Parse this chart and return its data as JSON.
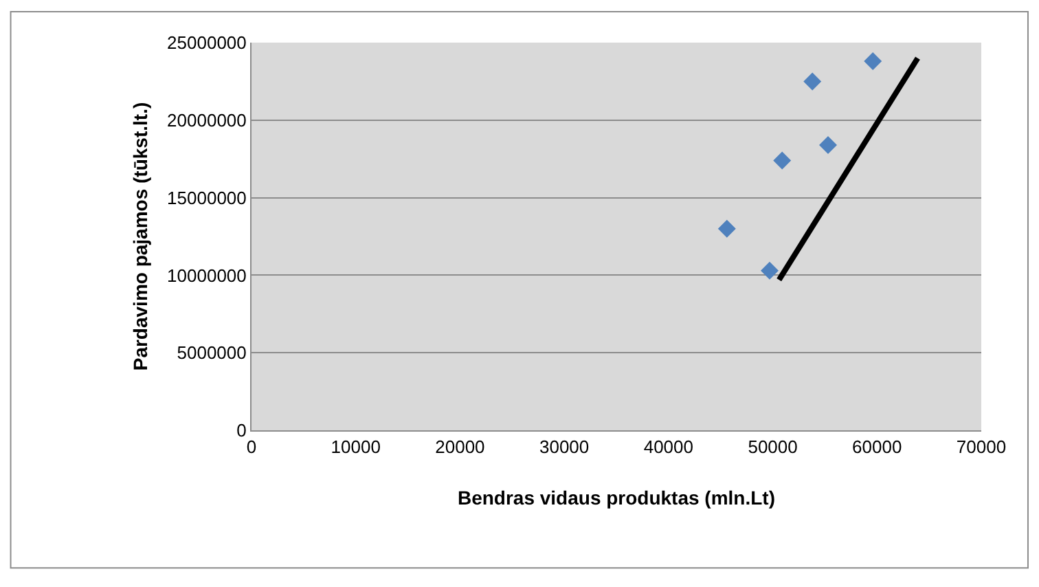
{
  "chart_data": {
    "type": "scatter",
    "xlabel": "Bendras vidaus produktas (mln.Lt)",
    "ylabel": "Pardavimo pajamos (tūkst.lt.)",
    "xlim": [
      0,
      70000
    ],
    "xticks": [
      0,
      10000,
      20000,
      30000,
      40000,
      50000,
      60000,
      70000
    ],
    "ylim": [
      0,
      25000000
    ],
    "yticks": [
      0,
      5000000,
      10000000,
      15000000,
      20000000,
      25000000
    ],
    "grid": "y",
    "legend": false,
    "series": [
      {
        "marker": "diamond",
        "color": "#4f81bd",
        "x": [
          45600,
          49700,
          50900,
          55300,
          53800,
          59600
        ],
        "values": [
          13000000,
          10300000,
          17400000,
          18400000,
          22500000,
          23800000
        ]
      },
      {
        "type": "line",
        "color": "#000000",
        "x": [
          50600,
          63900
        ],
        "values": [
          9700000,
          24000000
        ]
      }
    ]
  }
}
